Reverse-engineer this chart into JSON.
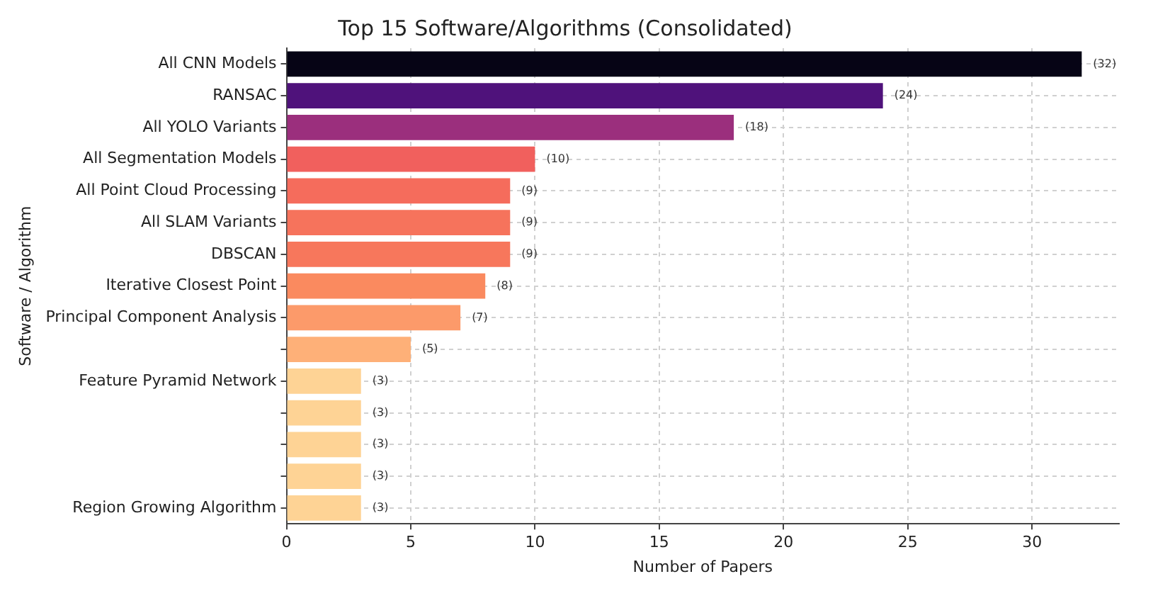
{
  "chart_data": {
    "type": "bar",
    "orientation": "horizontal",
    "title": "Top 15 Software/Algorithms (Consolidated)",
    "xlabel": "Number of Papers",
    "ylabel": "Software / Algorithm",
    "categories": [
      "All CNN Models",
      "RANSAC",
      "All YOLO Variants",
      "All Segmentation Models",
      "All Point Cloud Processing",
      "All SLAM Variants",
      "DBSCAN",
      "Iterative Closest Point",
      "Principal Component Analysis",
      null,
      "Feature Pyramid Network",
      null,
      null,
      null,
      "Region Growing Algorithm"
    ],
    "values": [
      32,
      24,
      18,
      10,
      9,
      9,
      9,
      8,
      7,
      5,
      3,
      3,
      3,
      3,
      3
    ],
    "colors": [
      "#060415",
      "#4f127b",
      "#9b2f7d",
      "#f1605d",
      "#f56c5c",
      "#f6735c",
      "#f7775c",
      "#fa8a5f",
      "#fc9a6a",
      "#feb078",
      "#fed395",
      "#fed395",
      "#fed395",
      "#fed395",
      "#fed395"
    ],
    "value_labels": [
      "(32)",
      "(24)",
      "(18)",
      "(10)",
      "(9)",
      "(9)",
      "(9)",
      "(8)",
      "(7)",
      "(5)",
      "(3)",
      "(3)",
      "(3)",
      "(3)",
      "(3)"
    ],
    "xlim": [
      0,
      33.5
    ],
    "xticks": [
      0,
      5,
      10,
      15,
      20,
      25,
      30
    ],
    "grid": true,
    "legend": false
  }
}
